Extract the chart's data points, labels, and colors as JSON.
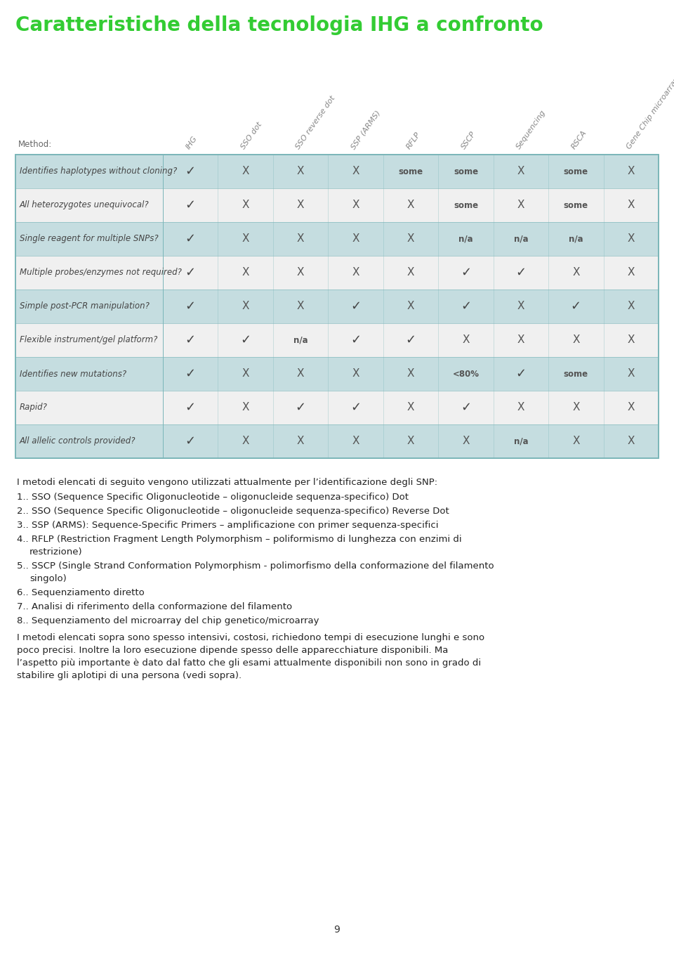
{
  "title": "Caratteristiche della tecnologia IHG a confronto",
  "title_color": "#33cc33",
  "title_fontsize": 20,
  "col_headers": [
    "IHG",
    "SSO dot",
    "SSO reverse dot",
    "SSP (ARMS)",
    "RFLP",
    "SSCP",
    "Sequencing",
    "RSCA",
    "Gene Chip microarray"
  ],
  "row_headers": [
    "Identifies haplotypes without cloning?",
    "All heterozygotes unequivocal?",
    "Single reagent for multiple SNPs?",
    "Multiple probes/enzymes not required?",
    "Simple post-PCR manipulation?",
    "Flexible instrument/gel platform?",
    "Identifies new mutations?",
    "Rapid?",
    "All allelic controls provided?"
  ],
  "table_data": [
    [
      "✓",
      "X",
      "X",
      "X",
      "some",
      "some",
      "X",
      "some",
      "X"
    ],
    [
      "✓",
      "X",
      "X",
      "X",
      "X",
      "some",
      "X",
      "some",
      "X"
    ],
    [
      "✓",
      "X",
      "X",
      "X",
      "X",
      "n/a",
      "n/a",
      "n/a",
      "X"
    ],
    [
      "✓",
      "X",
      "X",
      "X",
      "X",
      "✓",
      "✓",
      "X",
      "X"
    ],
    [
      "✓",
      "X",
      "X",
      "✓",
      "X",
      "✓",
      "X",
      "✓",
      "X"
    ],
    [
      "✓",
      "✓",
      "n/a",
      "✓",
      "✓",
      "X",
      "X",
      "X",
      "X"
    ],
    [
      "✓",
      "X",
      "X",
      "X",
      "X",
      "<80%",
      "✓",
      "some",
      "X"
    ],
    [
      "✓",
      "X",
      "✓",
      "✓",
      "X",
      "✓",
      "X",
      "X",
      "X"
    ],
    [
      "✓",
      "X",
      "X",
      "X",
      "X",
      "X",
      "n/a",
      "X",
      "X"
    ]
  ],
  "row_bg_colors": [
    "#c5dde0",
    "#f0f0f0",
    "#c5dde0",
    "#f0f0f0",
    "#c5dde0",
    "#f0f0f0",
    "#c5dde0",
    "#f0f0f0",
    "#c5dde0"
  ],
  "method_label": "Method:",
  "footer_text": "9",
  "table_border_color": "#7ab5b8",
  "check_color": "#444444",
  "x_color": "#555555",
  "some_color": "#555555",
  "header_text_color": "#888888",
  "row_header_color": "#444444",
  "body_intro": "I metodi elencati di seguito vengono utilizzati attualmente per l’identificazione degli SNP:",
  "body_items": [
    "1. SSO (Sequence Specific Oligonucleotide – oligonucleide sequenza-specifico) Dot",
    "2. SSO (Sequence Specific Oligonucleotide – oligonucleide sequenza-specifico) Reverse Dot",
    "3. SSP (ARMS): Sequence-Specific Primers – amplificazione con primer sequenza-specifici",
    "4. RFLP (Restriction Fragment Length Polymorphism – poliformismo di lunghezza con enzimi di restrizione)",
    "5. SSCP (Single Strand Conformation Polymorphism - polimorfismo della conformazione del filamento singolo)",
    "6. Sequenziamento diretto",
    "7. Analisi di riferimento della conformazione del filamento",
    "8. Sequenziamento del microarray del chip genetico/microarray"
  ],
  "body_closing": "I metodi elencati sopra sono spesso intensivi, costosi, richiedono tempi di esecuzione lunghi e sono poco precisi.  Inoltre la loro esecuzione dipende spesso delle apparecchiature disponibili.  Ma l’aspetto più importante è dato dal fatto che gli esami attualmente disponibili non sono in grado di stabilire gli aplotipi di una persona (vedi sopra)."
}
